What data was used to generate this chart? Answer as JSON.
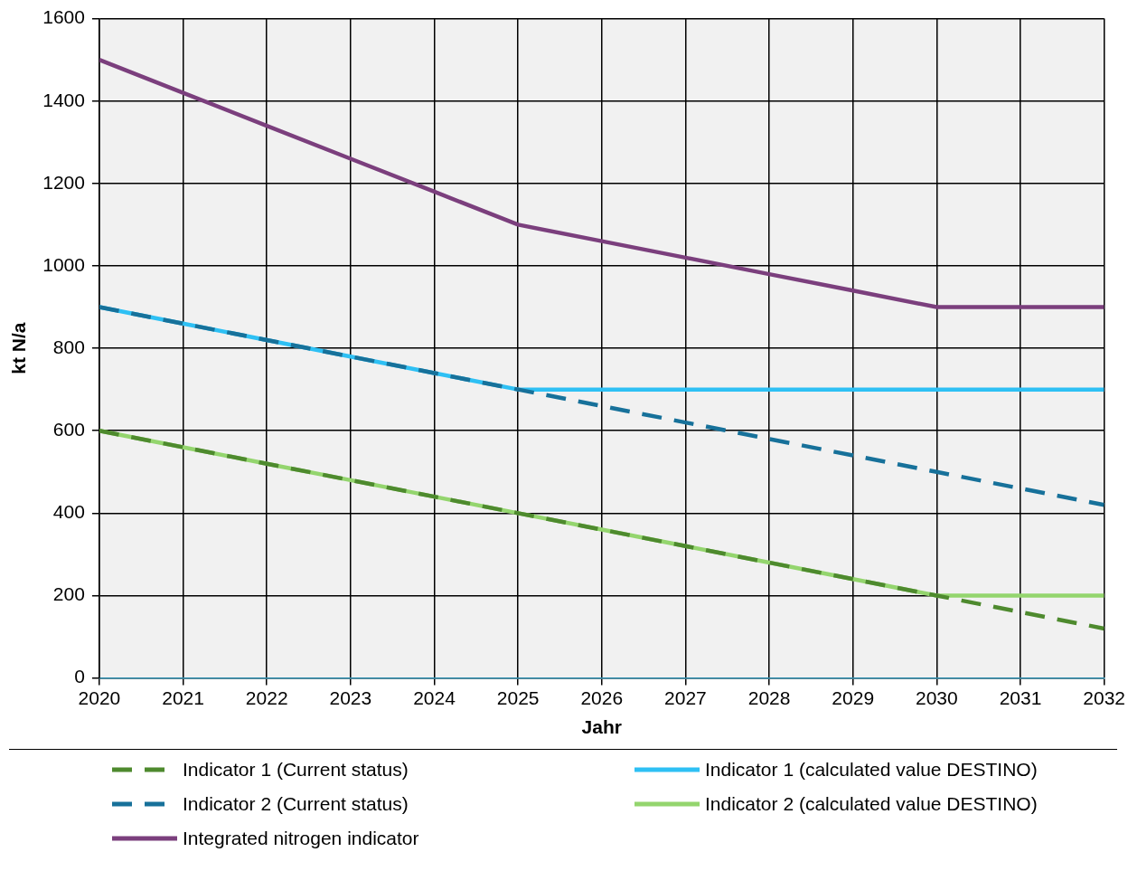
{
  "chart_data": {
    "type": "line",
    "xlabel": "Jahr",
    "ylabel": "kt N/a",
    "x": [
      2020,
      2021,
      2022,
      2023,
      2024,
      2025,
      2026,
      2027,
      2028,
      2029,
      2030,
      2031,
      2032
    ],
    "xlim": [
      2020,
      2032
    ],
    "xticks": [
      2020,
      2021,
      2022,
      2023,
      2024,
      2025,
      2026,
      2027,
      2028,
      2029,
      2030,
      2031,
      2032
    ],
    "ylim": [
      0,
      1600
    ],
    "yticks": [
      0,
      200,
      400,
      600,
      800,
      1000,
      1200,
      1400,
      1600
    ],
    "grid": true,
    "legend": "bottom",
    "marker": "none",
    "series": [
      {
        "name": "Indicator 1 (Current status)",
        "color": "#4e8a2e",
        "line_style": "dashed",
        "values": [
          600,
          560,
          520,
          480,
          440,
          400,
          360,
          320,
          280,
          240,
          200,
          160,
          120
        ]
      },
      {
        "name": "Indicator 2 (Current status)",
        "color": "#17719a",
        "line_style": "dashed",
        "values": [
          900,
          860,
          820,
          780,
          740,
          700,
          660,
          620,
          580,
          540,
          500,
          460,
          420
        ]
      },
      {
        "name": "Integrated nitrogen indicator",
        "color": "#7b3f7d",
        "line_style": "solid",
        "values": [
          1500,
          1420,
          1340,
          1260,
          1180,
          1100,
          1060,
          1020,
          980,
          940,
          900,
          900,
          900
        ]
      },
      {
        "name": "Indicator 1 (calculated value DESTINO)",
        "color": "#2ec0f4",
        "line_style": "solid",
        "values": [
          900,
          860,
          820,
          780,
          740,
          700,
          700,
          700,
          700,
          700,
          700,
          700,
          700
        ]
      },
      {
        "name": "Indicator 2 (calculated value DESTINO)",
        "color": "#94d56e",
        "line_style": "solid",
        "values": [
          600,
          560,
          520,
          480,
          440,
          400,
          360,
          320,
          280,
          240,
          200,
          200,
          200
        ]
      }
    ]
  }
}
